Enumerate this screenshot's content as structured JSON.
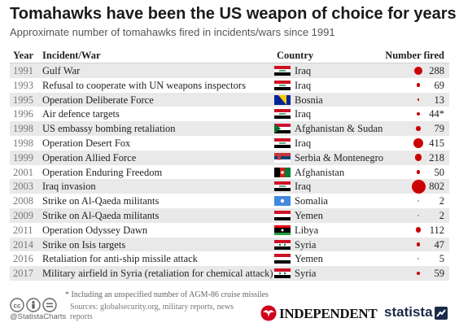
{
  "title": "Tomahawks have been the US weapon of choice for years",
  "subtitle": "Approximate number of tomahawks fired in incidents/wars since 1991",
  "headers": {
    "year": "Year",
    "incident": "Incident/War",
    "country": "Country",
    "number": "Number fired"
  },
  "chart_data": {
    "type": "table",
    "title": "Tomahawks have been the US weapon of choice for years",
    "subtitle": "Approximate number of tomahawks fired in incidents/wars since 1991",
    "columns": [
      "Year",
      "Incident/War",
      "Country",
      "Number fired"
    ],
    "rows": [
      {
        "year": "1991",
        "incident": "Gulf War",
        "country": "Iraq",
        "flag": "iraq",
        "number": 288,
        "label": "288"
      },
      {
        "year": "1993",
        "incident": "Refusal to cooperate with UN weapons inspectors",
        "country": "Iraq",
        "flag": "iraq",
        "number": 69,
        "label": "69"
      },
      {
        "year": "1995",
        "incident": "Operation Deliberate Force",
        "country": "Bosnia",
        "flag": "bosnia",
        "number": 13,
        "label": "13"
      },
      {
        "year": "1996",
        "incident": "Air defence targets",
        "country": "Iraq",
        "flag": "iraq",
        "number": 44,
        "label": "44*"
      },
      {
        "year": "1998",
        "incident": "US embassy bombing retaliation",
        "country": "Afghanistan & Sudan",
        "flag": "afghanistan-sudan",
        "number": 79,
        "label": "79"
      },
      {
        "year": "1998",
        "incident": "Operation Desert Fox",
        "country": "Iraq",
        "flag": "iraq",
        "number": 415,
        "label": "415"
      },
      {
        "year": "1999",
        "incident": "Operation Allied Force",
        "country": "Serbia & Montenegro",
        "flag": "serbia",
        "number": 218,
        "label": "218"
      },
      {
        "year": "2001",
        "incident": "Operation Enduring Freedom",
        "country": "Afghanistan",
        "flag": "afghanistan",
        "number": 50,
        "label": "50"
      },
      {
        "year": "2003",
        "incident": "Iraq invasion",
        "country": "Iraq",
        "flag": "iraq",
        "number": 802,
        "label": "802"
      },
      {
        "year": "2008",
        "incident": "Strike on Al-Qaeda militants",
        "country": "Somalia",
        "flag": "somalia",
        "number": 2,
        "label": "2"
      },
      {
        "year": "2009",
        "incident": "Strike on Al-Qaeda militants",
        "country": "Yemen",
        "flag": "yemen",
        "number": 2,
        "label": "2"
      },
      {
        "year": "2011",
        "incident": "Operation Odyssey Dawn",
        "country": "Libya",
        "flag": "libya",
        "number": 112,
        "label": "112"
      },
      {
        "year": "2014",
        "incident": "Strike on Isis targets",
        "country": "Syria",
        "flag": "syria",
        "number": 47,
        "label": "47"
      },
      {
        "year": "2016",
        "incident": "Retaliation for anti-ship missile attack",
        "country": "Yemen",
        "flag": "yemen",
        "number": 5,
        "label": "5"
      },
      {
        "year": "2017",
        "incident": "Military airfield in Syria (retaliation for chemical attack)",
        "country": "Syria",
        "flag": "syria",
        "number": 59,
        "label": "59"
      }
    ],
    "bubble_color": "#cc0000"
  },
  "footnote": "* Including an unspecified number of AGM-86 cruise missiles",
  "handle": "@StatistaCharts",
  "sources": "Sources: globalsecurity.org, military reports, news reports",
  "brand_independent": "INDEPENDENT",
  "brand_statista": "statista"
}
